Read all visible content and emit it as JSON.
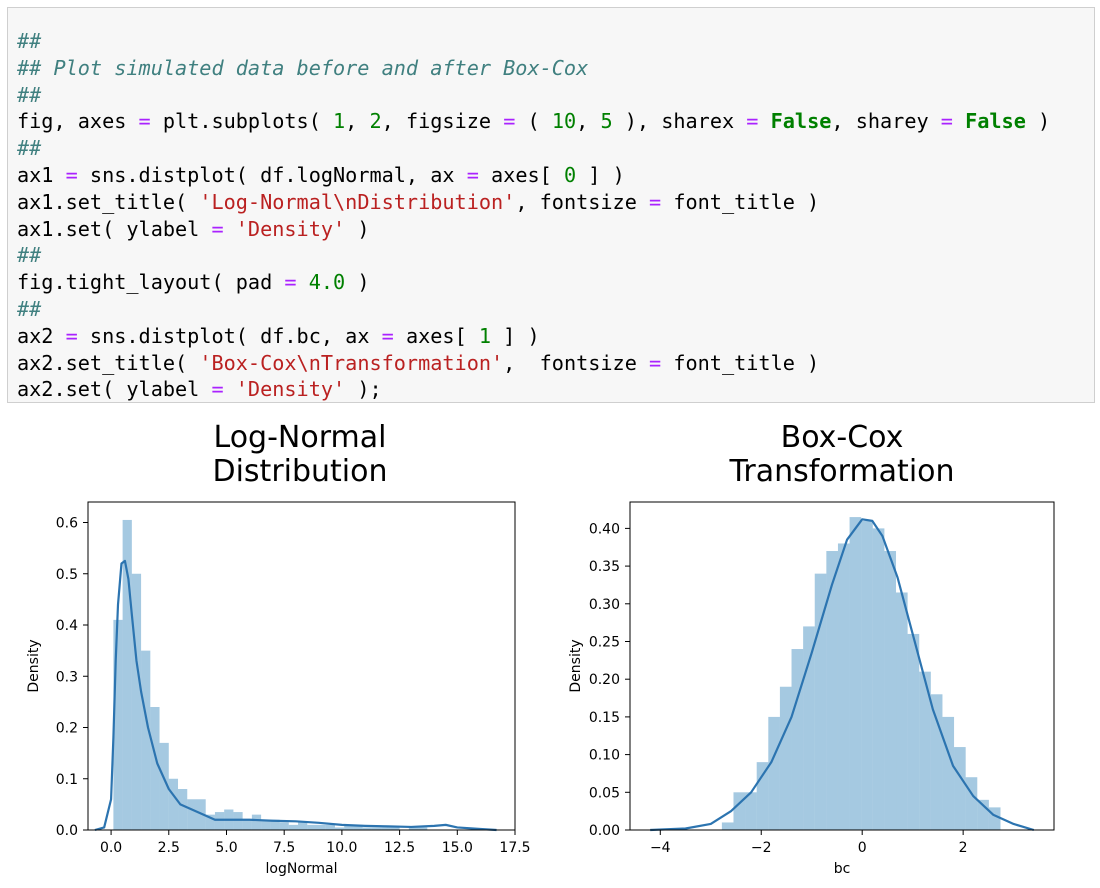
{
  "code_cell": {
    "lines": [
      "##",
      "## Plot simulated data before and after Box-Cox",
      "##",
      "fig, axes = plt.subplots( 1, 2, figsize = ( 10, 5 ), sharex = False, sharey = False )",
      "##",
      "ax1 = sns.distplot( df.logNormal, ax = axes[ 0 ] )",
      "ax1.set_title( 'Log-Normal\\nDistribution', fontsize = font_title )",
      "ax1.set( ylabel = 'Density' )",
      "##",
      "fig.tight_layout( pad = 4.0 )",
      "##",
      "ax2 = sns.distplot( df.bc, ax = axes[ 1 ] )",
      "ax2.set_title( 'Box-Cox\\nTransformation',  fontsize = font_title )",
      "ax2.set( ylabel = 'Density' );"
    ]
  },
  "colors": {
    "comment": "#408080",
    "string": "#ba2121",
    "number": "#008000",
    "operator": "#aa22ff",
    "keyword": "#008000",
    "bar_fill": "#1f77b4",
    "kde_line": "#2c74b0"
  },
  "chart_data": [
    {
      "type": "bar",
      "title": "Log-Normal\nDistribution",
      "title_lines": [
        "Log-Normal",
        "Distribution"
      ],
      "xlabel": "logNormal",
      "ylabel": "Density",
      "xlim": [
        -1.0,
        17.5
      ],
      "ylim": [
        0,
        0.64
      ],
      "xticks": [
        "0.0",
        "2.5",
        "5.0",
        "7.5",
        "10.0",
        "12.5",
        "15.0",
        "17.5"
      ],
      "xtick_values": [
        0,
        2.5,
        5,
        7.5,
        10,
        12.5,
        15,
        17.5
      ],
      "yticks": [
        "0.0",
        "0.1",
        "0.2",
        "0.3",
        "0.4",
        "0.5",
        "0.6"
      ],
      "ytick_values": [
        0,
        0.1,
        0.2,
        0.3,
        0.4,
        0.5,
        0.6
      ],
      "bin_width": 0.4,
      "bins_start": 0.1,
      "values": [
        0.41,
        0.605,
        0.5,
        0.35,
        0.24,
        0.17,
        0.1,
        0.08,
        0.06,
        0.06,
        0.03,
        0.035,
        0.04,
        0.035,
        0.02,
        0.03,
        0.02,
        0.02,
        0.015,
        0.01,
        0.015,
        0.01,
        0.01,
        0.01,
        0.005,
        0.01,
        0.01,
        0.005,
        0.005,
        0.005,
        0.005,
        0.0,
        0.005,
        0.005,
        0.0,
        0.0,
        0.0,
        0.0,
        0.0,
        0.0,
        0.0,
        0.0
      ],
      "kde": {
        "x": [
          -0.7,
          -0.3,
          0.0,
          0.1,
          0.2,
          0.3,
          0.45,
          0.6,
          0.75,
          0.9,
          1.1,
          1.3,
          1.6,
          2.0,
          2.5,
          3.0,
          3.5,
          4.0,
          4.5,
          5.0,
          6.0,
          7.0,
          8.0,
          9.0,
          10.0,
          11.0,
          12.0,
          13.0,
          14.0,
          14.5,
          15.0,
          16.0,
          16.7
        ],
        "y": [
          0.0,
          0.005,
          0.06,
          0.18,
          0.33,
          0.44,
          0.52,
          0.525,
          0.49,
          0.42,
          0.33,
          0.27,
          0.2,
          0.13,
          0.08,
          0.05,
          0.04,
          0.03,
          0.02,
          0.02,
          0.02,
          0.018,
          0.017,
          0.014,
          0.01,
          0.008,
          0.007,
          0.006,
          0.008,
          0.01,
          0.005,
          0.002,
          0.0
        ]
      }
    },
    {
      "type": "bar",
      "title": "Box-Cox\nTransformation",
      "title_lines": [
        "Box-Cox",
        "Transformation"
      ],
      "xlabel": "bc",
      "ylabel": "Density",
      "xlim": [
        -4.6,
        3.8
      ],
      "ylim": [
        0,
        0.435
      ],
      "xticks": [
        "−4",
        "−2",
        "0",
        "2"
      ],
      "xtick_values": [
        -4,
        -2,
        0,
        2
      ],
      "yticks": [
        "0.00",
        "0.05",
        "0.10",
        "0.15",
        "0.20",
        "0.25",
        "0.30",
        "0.35",
        "0.40"
      ],
      "ytick_values": [
        0,
        0.05,
        0.1,
        0.15,
        0.2,
        0.25,
        0.3,
        0.35,
        0.4
      ],
      "bin_width": 0.23,
      "bins_start": -2.78,
      "values": [
        0.01,
        0.05,
        0.05,
        0.09,
        0.15,
        0.19,
        0.24,
        0.27,
        0.34,
        0.37,
        0.38,
        0.415,
        0.41,
        0.4,
        0.37,
        0.315,
        0.26,
        0.21,
        0.18,
        0.15,
        0.11,
        0.07,
        0.04,
        0.03
      ],
      "kde": {
        "x": [
          -4.2,
          -3.5,
          -3.0,
          -2.6,
          -2.2,
          -1.8,
          -1.4,
          -1.0,
          -0.6,
          -0.3,
          0.0,
          0.2,
          0.4,
          0.7,
          1.0,
          1.4,
          1.8,
          2.2,
          2.6,
          3.0,
          3.4
        ],
        "y": [
          0.0,
          0.002,
          0.008,
          0.025,
          0.05,
          0.09,
          0.15,
          0.235,
          0.325,
          0.385,
          0.412,
          0.41,
          0.39,
          0.335,
          0.26,
          0.16,
          0.085,
          0.045,
          0.02,
          0.008,
          0.0
        ]
      }
    }
  ]
}
